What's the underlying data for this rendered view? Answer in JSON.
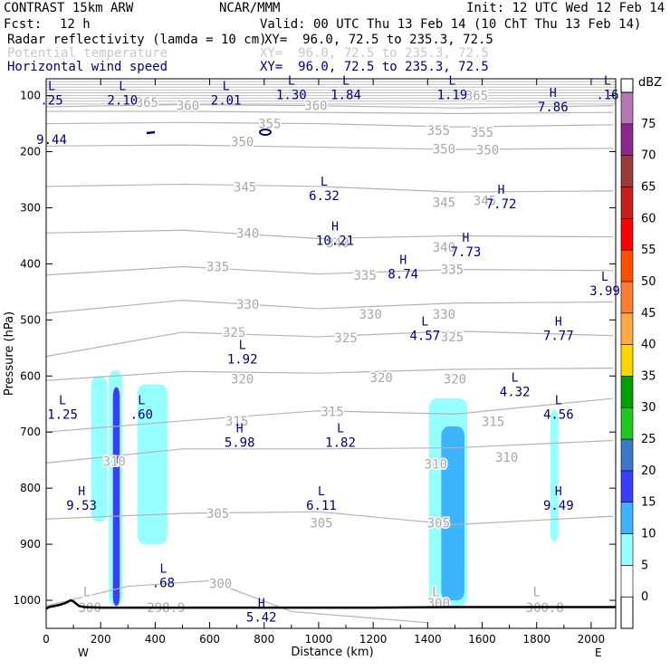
{
  "header": {
    "model": "CONTRAST 15km ARW",
    "org": "NCAR/MMM",
    "init": "Init: 12 UTC Wed 12 Feb 14",
    "fcst_label": "Fcst:",
    "fcst_value": "12 h",
    "valid": "Valid: 00 UTC Thu 13 Feb 14 (10 ChT Thu 13 Feb 14)",
    "fields": [
      {
        "name": "Radar reflectivity (lamda = 10 cm)",
        "xy": "XY=  96.0, 72.5 to 235.3, 72.5",
        "color": "#000000"
      },
      {
        "name": "Potential temperature",
        "xy": "XY=  96.0, 72.5 to 235.3, 72.5",
        "color": "#c8c8c8"
      },
      {
        "name": "Horizontal wind speed",
        "xy": "XY=  96.0, 72.5 to 235.3, 72.5",
        "color": "#00007f"
      }
    ]
  },
  "chart_data": {
    "type": "contour cross-section",
    "xlabel": "Distance (km)",
    "ylabel": "Pressure (hPa)",
    "xlim": [
      0,
      2090
    ],
    "ylim": [
      1050,
      70
    ],
    "xticks": [
      0,
      200,
      400,
      600,
      800,
      1000,
      1200,
      1400,
      1600,
      1800,
      2000
    ],
    "yticks": [
      100,
      200,
      300,
      400,
      500,
      600,
      700,
      800,
      900,
      1000
    ],
    "x_end_labels": {
      "left": "W",
      "right": "E"
    },
    "colorbar": {
      "unit": "dBZ",
      "levels": [
        "0",
        "5",
        "10",
        "15",
        "20",
        "25",
        "30",
        "35",
        "40",
        "45",
        "50",
        "55",
        "60",
        "65",
        "70",
        "75"
      ],
      "colors": [
        "#ffffff",
        "#96ffff",
        "#3cb4ff",
        "#3c3cff",
        "#3c78c8",
        "#1ec81e",
        "#00a000",
        "#ffd700",
        "#ffaa46",
        "#ff7d32",
        "#ff5000",
        "#ff0000",
        "#c81e1e",
        "#963c3c",
        "#8c288c",
        "#b478b4"
      ]
    },
    "theta_contours": [
      {
        "label": "365",
        "levels": [
          {
            "x": 0,
            "p": 120
          },
          {
            "x": 500,
            "p": 116
          },
          {
            "x": 1000,
            "p": 118
          },
          {
            "x": 1500,
            "p": 122
          },
          {
            "x": 2080,
            "p": 118
          }
        ]
      },
      {
        "label": "360",
        "levels": [
          {
            "x": 0,
            "p": 128
          },
          {
            "x": 500,
            "p": 128
          },
          {
            "x": 1000,
            "p": 130
          },
          {
            "x": 1500,
            "p": 132
          },
          {
            "x": 2080,
            "p": 130
          }
        ]
      },
      {
        "label": "355",
        "levels": [
          {
            "x": 0,
            "p": 150
          },
          {
            "x": 500,
            "p": 148
          },
          {
            "x": 1000,
            "p": 150
          },
          {
            "x": 1500,
            "p": 156
          },
          {
            "x": 2080,
            "p": 152
          }
        ]
      },
      {
        "label": "350",
        "levels": [
          {
            "x": 0,
            "p": 190
          },
          {
            "x": 500,
            "p": 188
          },
          {
            "x": 1000,
            "p": 192
          },
          {
            "x": 1500,
            "p": 196
          },
          {
            "x": 2080,
            "p": 194
          }
        ]
      },
      {
        "label": "345",
        "levels": [
          {
            "x": 0,
            "p": 262
          },
          {
            "x": 500,
            "p": 258
          },
          {
            "x": 1000,
            "p": 262
          },
          {
            "x": 1500,
            "p": 272
          },
          {
            "x": 2080,
            "p": 270
          }
        ]
      },
      {
        "label": "340",
        "levels": [
          {
            "x": 0,
            "p": 345
          },
          {
            "x": 500,
            "p": 340
          },
          {
            "x": 1000,
            "p": 355
          },
          {
            "x": 1500,
            "p": 350
          },
          {
            "x": 2080,
            "p": 352
          }
        ]
      },
      {
        "label": "335",
        "levels": [
          {
            "x": 0,
            "p": 420
          },
          {
            "x": 500,
            "p": 405
          },
          {
            "x": 1000,
            "p": 418
          },
          {
            "x": 1500,
            "p": 410
          },
          {
            "x": 2080,
            "p": 412
          }
        ]
      },
      {
        "label": "330",
        "levels": [
          {
            "x": 0,
            "p": 488
          },
          {
            "x": 500,
            "p": 465
          },
          {
            "x": 1000,
            "p": 480
          },
          {
            "x": 1500,
            "p": 470
          },
          {
            "x": 2080,
            "p": 468
          }
        ]
      },
      {
        "label": "325",
        "levels": [
          {
            "x": 0,
            "p": 565
          },
          {
            "x": 500,
            "p": 522
          },
          {
            "x": 1000,
            "p": 530
          },
          {
            "x": 1500,
            "p": 520
          },
          {
            "x": 2080,
            "p": 528
          }
        ]
      },
      {
        "label": "320",
        "levels": [
          {
            "x": 0,
            "p": 608
          },
          {
            "x": 500,
            "p": 592
          },
          {
            "x": 1000,
            "p": 595
          },
          {
            "x": 1500,
            "p": 588
          },
          {
            "x": 2080,
            "p": 586
          }
        ]
      },
      {
        "label": "315",
        "levels": [
          {
            "x": 0,
            "p": 700
          },
          {
            "x": 500,
            "p": 680
          },
          {
            "x": 1000,
            "p": 662
          },
          {
            "x": 1500,
            "p": 668
          },
          {
            "x": 2080,
            "p": 640
          }
        ]
      },
      {
        "label": "310",
        "levels": [
          {
            "x": 0,
            "p": 755
          },
          {
            "x": 500,
            "p": 730
          },
          {
            "x": 1000,
            "p": 730
          },
          {
            "x": 1500,
            "p": 728
          },
          {
            "x": 2080,
            "p": 715
          }
        ]
      },
      {
        "label": "305",
        "levels": [
          {
            "x": 0,
            "p": 855
          },
          {
            "x": 500,
            "p": 845
          },
          {
            "x": 1000,
            "p": 842
          },
          {
            "x": 1500,
            "p": 865
          },
          {
            "x": 2080,
            "p": 850
          }
        ]
      },
      {
        "label": "300",
        "levels": [
          {
            "x": 0,
            "p": 1010
          },
          {
            "x": 300,
            "p": 975
          },
          {
            "x": 600,
            "p": 965
          },
          {
            "x": 900,
            "p": 1020
          },
          {
            "x": 1400,
            "p": 1040
          }
        ]
      }
    ],
    "theta_labels": [
      {
        "text": "365",
        "x": 370,
        "p": 112
      },
      {
        "text": "360",
        "x": 520,
        "p": 118
      },
      {
        "text": "360",
        "x": 990,
        "p": 118
      },
      {
        "text": "365",
        "x": 1580,
        "p": 100
      },
      {
        "text": "355",
        "x": 820,
        "p": 150
      },
      {
        "text": "355",
        "x": 1440,
        "p": 162
      },
      {
        "text": "355",
        "x": 1600,
        "p": 165
      },
      {
        "text": "350",
        "x": 720,
        "p": 182
      },
      {
        "text": "350",
        "x": 1460,
        "p": 195
      },
      {
        "text": "350",
        "x": 1620,
        "p": 197
      },
      {
        "text": "345",
        "x": 730,
        "p": 263
      },
      {
        "text": "345",
        "x": 1460,
        "p": 290
      },
      {
        "text": "345",
        "x": 1610,
        "p": 287
      },
      {
        "text": "340",
        "x": 740,
        "p": 345
      },
      {
        "text": "340",
        "x": 1460,
        "p": 370
      },
      {
        "text": "340",
        "x": 1070,
        "p": 362
      },
      {
        "text": "335",
        "x": 630,
        "p": 405
      },
      {
        "text": "335",
        "x": 1170,
        "p": 420
      },
      {
        "text": "335",
        "x": 1490,
        "p": 410
      },
      {
        "text": "330",
        "x": 740,
        "p": 472
      },
      {
        "text": "330",
        "x": 1190,
        "p": 490
      },
      {
        "text": "330",
        "x": 1460,
        "p": 490
      },
      {
        "text": "325",
        "x": 690,
        "p": 522
      },
      {
        "text": "325",
        "x": 1100,
        "p": 532
      },
      {
        "text": "325",
        "x": 1490,
        "p": 530
      },
      {
        "text": "320",
        "x": 720,
        "p": 605
      },
      {
        "text": "320",
        "x": 1230,
        "p": 603
      },
      {
        "text": "320",
        "x": 1500,
        "p": 605
      },
      {
        "text": "315",
        "x": 700,
        "p": 680
      },
      {
        "text": "315",
        "x": 1050,
        "p": 663
      },
      {
        "text": "315",
        "x": 1640,
        "p": 681
      },
      {
        "text": "310",
        "x": 250,
        "p": 752
      },
      {
        "text": "310",
        "x": 1430,
        "p": 757
      },
      {
        "text": "310",
        "x": 1690,
        "p": 745
      },
      {
        "text": "305",
        "x": 630,
        "p": 845
      },
      {
        "text": "305",
        "x": 1010,
        "p": 862
      },
      {
        "text": "305",
        "x": 1440,
        "p": 862
      },
      {
        "text": "300",
        "x": 640,
        "p": 970
      },
      {
        "text": "300",
        "x": 160,
        "p": 1013
      },
      {
        "text": "298.9",
        "x": 440,
        "p": 1013
      },
      {
        "text": "300",
        "x": 1440,
        "p": 1005
      },
      {
        "text": "300.8",
        "x": 1830,
        "p": 1013
      },
      {
        "text": "L",
        "x": 150,
        "p": 985
      },
      {
        "text": "L",
        "x": 1430,
        "p": 985
      },
      {
        "text": "L",
        "x": 1800,
        "p": 985
      }
    ],
    "wind_extrema": [
      {
        "type": "L",
        "value": ".25",
        "x": 20,
        "p": 100
      },
      {
        "type": "L",
        "value": "2.10",
        "x": 280,
        "p": 100
      },
      {
        "type": "L",
        "value": "2.01",
        "x": 660,
        "p": 100
      },
      {
        "type": "L",
        "value": "1.30",
        "x": 900,
        "p": 90
      },
      {
        "type": "L",
        "value": "1.84",
        "x": 1100,
        "p": 90
      },
      {
        "type": "L",
        "value": "1.19",
        "x": 1490,
        "p": 90
      },
      {
        "type": "L",
        "value": ".16",
        "x": 2060,
        "p": 90
      },
      {
        "type": "H",
        "value": "7.86",
        "x": 1860,
        "p": 112
      },
      {
        "type": "",
        "value": "9.44",
        "x": 20,
        "p": 170
      },
      {
        "type": "L",
        "value": "6.32",
        "x": 1020,
        "p": 270
      },
      {
        "type": "H",
        "value": "7.72",
        "x": 1670,
        "p": 285
      },
      {
        "type": "H",
        "value": "10.21",
        "x": 1060,
        "p": 350
      },
      {
        "type": "H",
        "value": "7.73",
        "x": 1540,
        "p": 370
      },
      {
        "type": "H",
        "value": "8.74",
        "x": 1310,
        "p": 410
      },
      {
        "type": "L",
        "value": "3.99",
        "x": 2050,
        "p": 440
      },
      {
        "type": "L",
        "value": "4.57",
        "x": 1390,
        "p": 520
      },
      {
        "type": "H",
        "value": "7.77",
        "x": 1880,
        "p": 520
      },
      {
        "type": "L",
        "value": "1.92",
        "x": 720,
        "p": 562
      },
      {
        "type": "L",
        "value": "4.32",
        "x": 1720,
        "p": 620
      },
      {
        "type": "L",
        "value": "1.25",
        "x": 60,
        "p": 660
      },
      {
        "type": "L",
        "value": ".60",
        "x": 350,
        "p": 660
      },
      {
        "type": "L",
        "value": "4.56",
        "x": 1880,
        "p": 660
      },
      {
        "type": "H",
        "value": "5.98",
        "x": 710,
        "p": 710
      },
      {
        "type": "L",
        "value": "1.82",
        "x": 1080,
        "p": 710
      },
      {
        "type": "H",
        "value": "9.53",
        "x": 130,
        "p": 822
      },
      {
        "type": "L",
        "value": "6.11",
        "x": 1010,
        "p": 822
      },
      {
        "type": "H",
        "value": "9.49",
        "x": 1880,
        "p": 822
      },
      {
        "type": "L",
        "value": ".68",
        "x": 430,
        "p": 960
      },
      {
        "type": "H",
        "value": "5.42",
        "x": 790,
        "p": 1022
      }
    ],
    "reflectivity_cells": [
      {
        "x0": 165,
        "x1": 225,
        "ptop": 600,
        "pbot": 860,
        "dbz": 5
      },
      {
        "x0": 230,
        "x1": 280,
        "ptop": 590,
        "pbot": 1010,
        "dbz": 5
      },
      {
        "x0": 245,
        "x1": 270,
        "ptop": 620,
        "pbot": 1010,
        "dbz": 15
      },
      {
        "x0": 335,
        "x1": 445,
        "ptop": 615,
        "pbot": 900,
        "dbz": 5
      },
      {
        "x0": 1405,
        "x1": 1545,
        "ptop": 640,
        "pbot": 1010,
        "dbz": 5
      },
      {
        "x0": 1450,
        "x1": 1535,
        "ptop": 690,
        "pbot": 1000,
        "dbz": 10
      },
      {
        "x0": 1850,
        "x1": 1880,
        "ptop": 660,
        "pbot": 895,
        "dbz": 5
      }
    ]
  }
}
